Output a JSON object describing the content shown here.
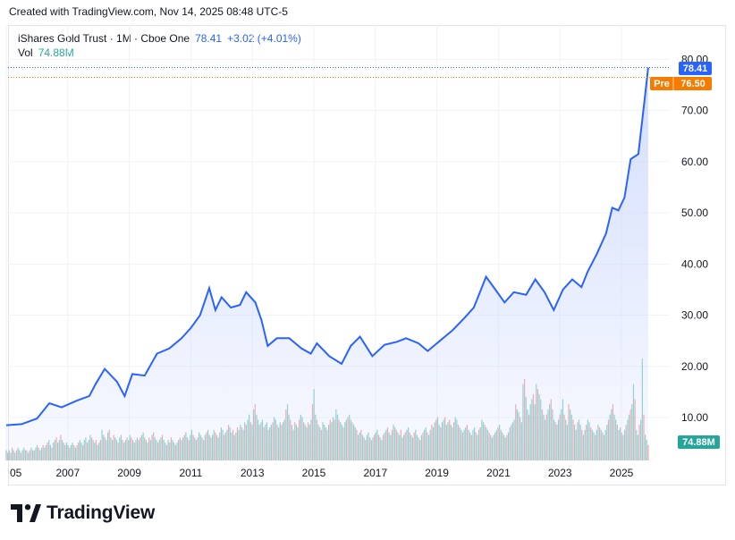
{
  "header": {
    "created_line": "Created with TradingView.com, Nov 14, 2025 08:48 UTC-5"
  },
  "legend": {
    "symbol_line": "iShares Gold Trust · 1M · Cboe One",
    "price": "78.41",
    "change": "+3.02 (+4.01%)",
    "vol_label": "Vol",
    "vol_value": "74.88M"
  },
  "tags": {
    "last_price": "78.41",
    "pre_label": "Pre",
    "pre_price": "76.50",
    "volume": "74.88M"
  },
  "footer": {
    "brand": "TradingView"
  },
  "colors": {
    "line": "#2962ff",
    "area_top": "#c5d3fb",
    "vol_up": "#26a69a",
    "vol_down": "#ef5350",
    "pre": "#f57c00",
    "grid": "#f0f3fa"
  },
  "chart_data": {
    "type": "area",
    "title": "iShares Gold Trust · 1M · Cboe One",
    "x_tick_labels": [
      "05",
      "2007",
      "2009",
      "2011",
      "2013",
      "2015",
      "2017",
      "2019",
      "2021",
      "2023",
      "2025"
    ],
    "y_tick_labels": [
      "10.00",
      "20.00",
      "30.00",
      "40.00",
      "50.00",
      "60.00",
      "70.00",
      "80.00"
    ],
    "ylim": [
      0,
      85
    ],
    "grid": true,
    "series": [
      {
        "values_by_year": [
          {
            "x": 2005.0,
            "y": 8.5
          },
          {
            "x": 2005.5,
            "y": 8.7
          },
          {
            "x": 2006.0,
            "y": 9.8
          },
          {
            "x": 2006.4,
            "y": 12.8
          },
          {
            "x": 2006.8,
            "y": 12.0
          },
          {
            "x": 2007.3,
            "y": 13.3
          },
          {
            "x": 2007.7,
            "y": 14.2
          },
          {
            "x": 2007.9,
            "y": 16.5
          },
          {
            "x": 2008.2,
            "y": 19.5
          },
          {
            "x": 2008.6,
            "y": 17.0
          },
          {
            "x": 2008.85,
            "y": 14.2
          },
          {
            "x": 2009.1,
            "y": 18.5
          },
          {
            "x": 2009.5,
            "y": 18.2
          },
          {
            "x": 2009.9,
            "y": 22.5
          },
          {
            "x": 2010.3,
            "y": 23.5
          },
          {
            "x": 2010.7,
            "y": 25.5
          },
          {
            "x": 2011.0,
            "y": 27.5
          },
          {
            "x": 2011.3,
            "y": 30.0
          },
          {
            "x": 2011.6,
            "y": 35.3
          },
          {
            "x": 2011.8,
            "y": 31.0
          },
          {
            "x": 2012.0,
            "y": 33.5
          },
          {
            "x": 2012.3,
            "y": 31.5
          },
          {
            "x": 2012.6,
            "y": 32.0
          },
          {
            "x": 2012.8,
            "y": 34.5
          },
          {
            "x": 2013.1,
            "y": 32.5
          },
          {
            "x": 2013.3,
            "y": 29.0
          },
          {
            "x": 2013.5,
            "y": 24.0
          },
          {
            "x": 2013.8,
            "y": 25.5
          },
          {
            "x": 2014.2,
            "y": 25.5
          },
          {
            "x": 2014.6,
            "y": 23.5
          },
          {
            "x": 2014.9,
            "y": 22.5
          },
          {
            "x": 2015.1,
            "y": 24.5
          },
          {
            "x": 2015.5,
            "y": 22.0
          },
          {
            "x": 2015.9,
            "y": 20.5
          },
          {
            "x": 2016.2,
            "y": 24.0
          },
          {
            "x": 2016.5,
            "y": 25.8
          },
          {
            "x": 2016.9,
            "y": 22.0
          },
          {
            "x": 2017.3,
            "y": 24.2
          },
          {
            "x": 2017.7,
            "y": 24.8
          },
          {
            "x": 2018.0,
            "y": 25.5
          },
          {
            "x": 2018.4,
            "y": 24.5
          },
          {
            "x": 2018.7,
            "y": 23.0
          },
          {
            "x": 2019.0,
            "y": 24.5
          },
          {
            "x": 2019.5,
            "y": 27.0
          },
          {
            "x": 2019.9,
            "y": 29.5
          },
          {
            "x": 2020.2,
            "y": 31.5
          },
          {
            "x": 2020.4,
            "y": 34.5
          },
          {
            "x": 2020.6,
            "y": 37.5
          },
          {
            "x": 2020.9,
            "y": 35.0
          },
          {
            "x": 2021.2,
            "y": 32.5
          },
          {
            "x": 2021.5,
            "y": 34.5
          },
          {
            "x": 2021.9,
            "y": 34.0
          },
          {
            "x": 2022.2,
            "y": 37.0
          },
          {
            "x": 2022.5,
            "y": 34.5
          },
          {
            "x": 2022.8,
            "y": 31.0
          },
          {
            "x": 2023.1,
            "y": 35.0
          },
          {
            "x": 2023.4,
            "y": 37.0
          },
          {
            "x": 2023.7,
            "y": 35.5
          },
          {
            "x": 2023.9,
            "y": 38.5
          },
          {
            "x": 2024.2,
            "y": 42.0
          },
          {
            "x": 2024.5,
            "y": 46.0
          },
          {
            "x": 2024.7,
            "y": 51.0
          },
          {
            "x": 2024.9,
            "y": 50.5
          },
          {
            "x": 2025.1,
            "y": 53.0
          },
          {
            "x": 2025.3,
            "y": 60.5
          },
          {
            "x": 2025.55,
            "y": 61.5
          },
          {
            "x": 2025.75,
            "y": 72.0
          },
          {
            "x": 2025.87,
            "y": 78.4
          }
        ],
        "volume_millions": [
          4,
          3,
          4,
          3,
          5,
          4,
          3,
          4,
          5,
          4,
          3,
          4,
          5,
          4,
          4,
          3,
          4,
          5,
          4,
          4,
          5,
          6,
          5,
          4,
          5,
          6,
          5,
          6,
          7,
          8,
          6,
          5,
          7,
          8,
          9,
          7,
          8,
          10,
          8,
          7,
          6,
          7,
          6,
          5,
          6,
          7,
          6,
          5,
          6,
          7,
          8,
          7,
          6,
          8,
          9,
          7,
          8,
          10,
          9,
          8,
          7,
          8,
          6,
          7,
          8,
          12,
          10,
          9,
          8,
          11,
          12,
          9,
          8,
          10,
          9,
          8,
          7,
          9,
          10,
          8,
          7,
          8,
          9,
          8,
          10,
          9,
          8,
          7,
          8,
          9,
          8,
          9,
          10,
          11,
          9,
          8,
          7,
          9,
          8,
          10,
          11,
          9,
          8,
          7,
          8,
          9,
          10,
          8,
          7,
          6,
          8,
          7,
          9,
          8,
          7,
          6,
          7,
          8,
          9,
          8,
          9,
          10,
          11,
          9,
          8,
          10,
          12,
          10,
          9,
          8,
          9,
          11,
          10,
          9,
          8,
          10,
          11,
          12,
          10,
          9,
          10,
          12,
          11,
          10,
          9,
          11,
          13,
          12,
          10,
          11,
          12,
          14,
          13,
          11,
          12,
          10,
          11,
          13,
          12,
          14,
          13,
          12,
          15,
          14,
          16,
          18,
          15,
          14,
          20,
          22,
          18,
          16,
          14,
          15,
          16,
          13,
          14,
          15,
          12,
          13,
          14,
          15,
          17,
          16,
          14,
          13,
          15,
          14,
          15,
          16,
          20,
          22,
          18,
          16,
          14,
          12,
          15,
          14,
          13,
          16,
          18,
          17,
          15,
          14,
          13,
          15,
          14,
          16,
          22,
          28,
          18,
          16,
          14,
          13,
          12,
          15,
          14,
          13,
          12,
          14,
          16,
          15,
          17,
          16,
          20,
          18,
          16,
          15,
          14,
          13,
          15,
          16,
          17,
          18,
          16,
          15,
          14,
          13,
          12,
          10,
          11,
          12,
          10,
          9,
          8,
          10,
          11,
          9,
          8,
          9,
          10,
          11,
          12,
          10,
          9,
          8,
          10,
          11,
          12,
          13,
          11,
          10,
          12,
          14,
          13,
          12,
          11,
          10,
          12,
          9,
          10,
          11,
          12,
          13,
          11,
          10,
          9,
          11,
          12,
          10,
          9,
          8,
          10,
          11,
          12,
          13,
          11,
          10,
          12,
          14,
          13,
          15,
          16,
          17,
          14,
          13,
          15,
          16,
          17,
          14,
          15,
          16,
          14,
          13,
          15,
          17,
          16,
          14,
          13,
          12,
          11,
          12,
          13,
          14,
          12,
          11,
          10,
          12,
          13,
          11,
          10,
          12,
          13,
          16,
          15,
          14,
          13,
          12,
          11,
          10,
          9,
          10,
          11,
          12,
          13,
          14,
          12,
          11,
          10,
          9,
          10,
          11,
          13,
          14,
          15,
          16,
          22,
          20,
          19,
          17,
          15,
          30,
          32,
          25,
          20,
          18,
          22,
          24,
          26,
          22,
          30,
          28,
          26,
          24,
          20,
          18,
          16,
          18,
          20,
          22,
          24,
          20,
          16,
          15,
          14,
          16,
          18,
          20,
          24,
          18,
          16,
          14,
          22,
          20,
          18,
          16,
          14,
          12,
          15,
          16,
          14,
          12,
          10,
          12,
          14,
          16,
          15,
          13,
          12,
          11,
          10,
          12,
          14,
          13,
          12,
          11,
          10,
          12,
          14,
          16,
          18,
          20,
          22,
          18,
          16,
          14,
          12,
          13,
          11,
          10,
          12,
          14,
          16,
          18,
          20,
          22,
          30,
          24,
          12,
          10,
          14,
          16,
          40,
          18,
          10,
          8,
          6
        ]
      }
    ]
  }
}
